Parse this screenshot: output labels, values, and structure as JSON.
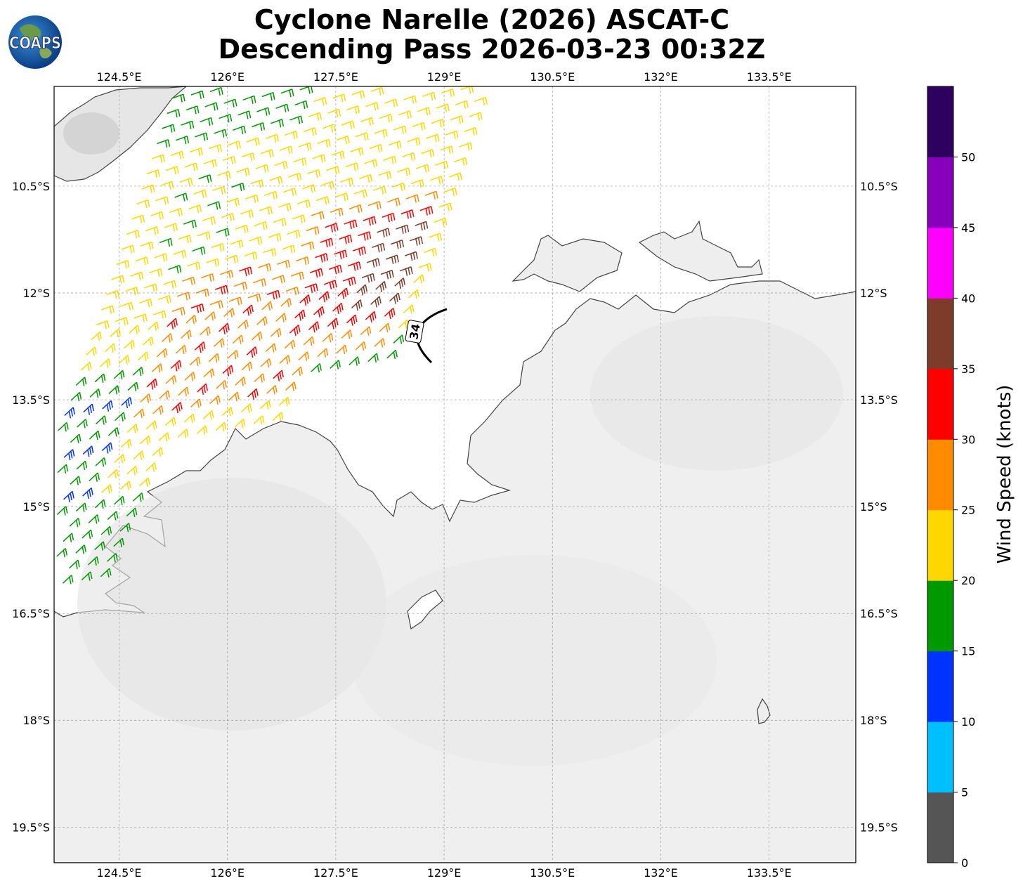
{
  "title": {
    "line1": "Cyclone Narelle (2026) ASCAT-C",
    "line2": "Descending Pass 2026-03-23 00:32Z"
  },
  "logo": {
    "text": "COAPS"
  },
  "map": {
    "lon_range": [
      123.6,
      134.7
    ],
    "lat_range": [
      -20.0,
      -9.1
    ],
    "lon_ticks": [
      124.5,
      126.0,
      127.5,
      129.0,
      130.5,
      132.0,
      133.5
    ],
    "lon_tick_labels": [
      "124.5°E",
      "126°E",
      "127.5°E",
      "129°E",
      "130.5°E",
      "132°E",
      "133.5°E"
    ],
    "lat_ticks": [
      -10.5,
      -12.0,
      -13.5,
      -15.0,
      -16.5,
      -18.0,
      -19.5
    ],
    "lat_tick_labels": [
      "10.5°S",
      "12°S",
      "13.5°S",
      "15°S",
      "16.5°S",
      "18°S",
      "19.5°S"
    ],
    "contour_label": "34"
  },
  "colorbar": {
    "label": "Wind Speed (knots)",
    "ticks": [
      "0",
      "5",
      "10",
      "15",
      "20",
      "25",
      "30",
      "35",
      "40",
      "45",
      "50"
    ],
    "colors": [
      "#555555",
      "#00bfff",
      "#0033ff",
      "#009900",
      "#ffd700",
      "#ff8c00",
      "#ff0000",
      "#7f3b2a",
      "#ff00ff",
      "#8800bb",
      "#2e0060"
    ]
  }
}
